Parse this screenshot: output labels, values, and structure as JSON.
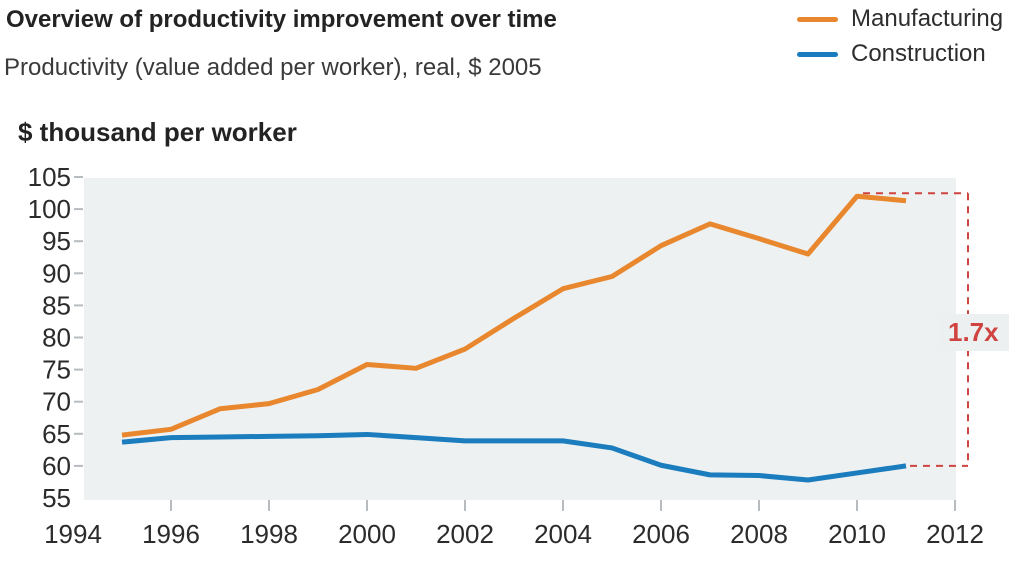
{
  "header": {
    "title": "Overview of productivity improvement over time",
    "subtitle": "Productivity (value added per worker), real, $ 2005"
  },
  "legend": [
    {
      "label": "Manufacturing",
      "color": "#e8872e"
    },
    {
      "label": "Construction",
      "color": "#1b7cbe"
    }
  ],
  "chart_data": {
    "type": "line",
    "title": "Overview of productivity improvement over time",
    "subtitle": "Productivity (value added per worker), real, $ 2005",
    "ylabel": "$ thousand per worker",
    "x": [
      1995,
      1996,
      1997,
      1998,
      1999,
      2000,
      2001,
      2002,
      2003,
      2004,
      2005,
      2006,
      2007,
      2008,
      2009,
      2010,
      2011
    ],
    "series": [
      {
        "name": "Manufacturing",
        "color": "#e8872e",
        "values": [
          64.8,
          65.7,
          68.9,
          69.7,
          71.9,
          75.8,
          75.2,
          78.2,
          83.0,
          87.6,
          89.5,
          94.3,
          97.7,
          95.4,
          93.0,
          102.0,
          101.3
        ]
      },
      {
        "name": "Construction",
        "color": "#1b7cbe",
        "values": [
          63.7,
          64.4,
          64.5,
          64.6,
          64.7,
          64.9,
          64.4,
          63.9,
          63.9,
          63.9,
          62.8,
          60.1,
          58.6,
          58.5,
          57.8,
          58.9,
          60.0
        ]
      }
    ],
    "xlim": [
      1994,
      2012
    ],
    "ylim": [
      55,
      105
    ],
    "xticks": [
      1994,
      1996,
      1998,
      2000,
      2002,
      2004,
      2006,
      2008,
      2010,
      2012
    ],
    "yticks": [
      55,
      60,
      65,
      70,
      75,
      80,
      85,
      90,
      95,
      100,
      105
    ],
    "grid": false,
    "legend_position": "top-right",
    "plot_bg": "#edf1f2",
    "tick_color": "#b6bcbf",
    "annotation": {
      "label": "1.7x",
      "color": "#cf4440"
    }
  }
}
